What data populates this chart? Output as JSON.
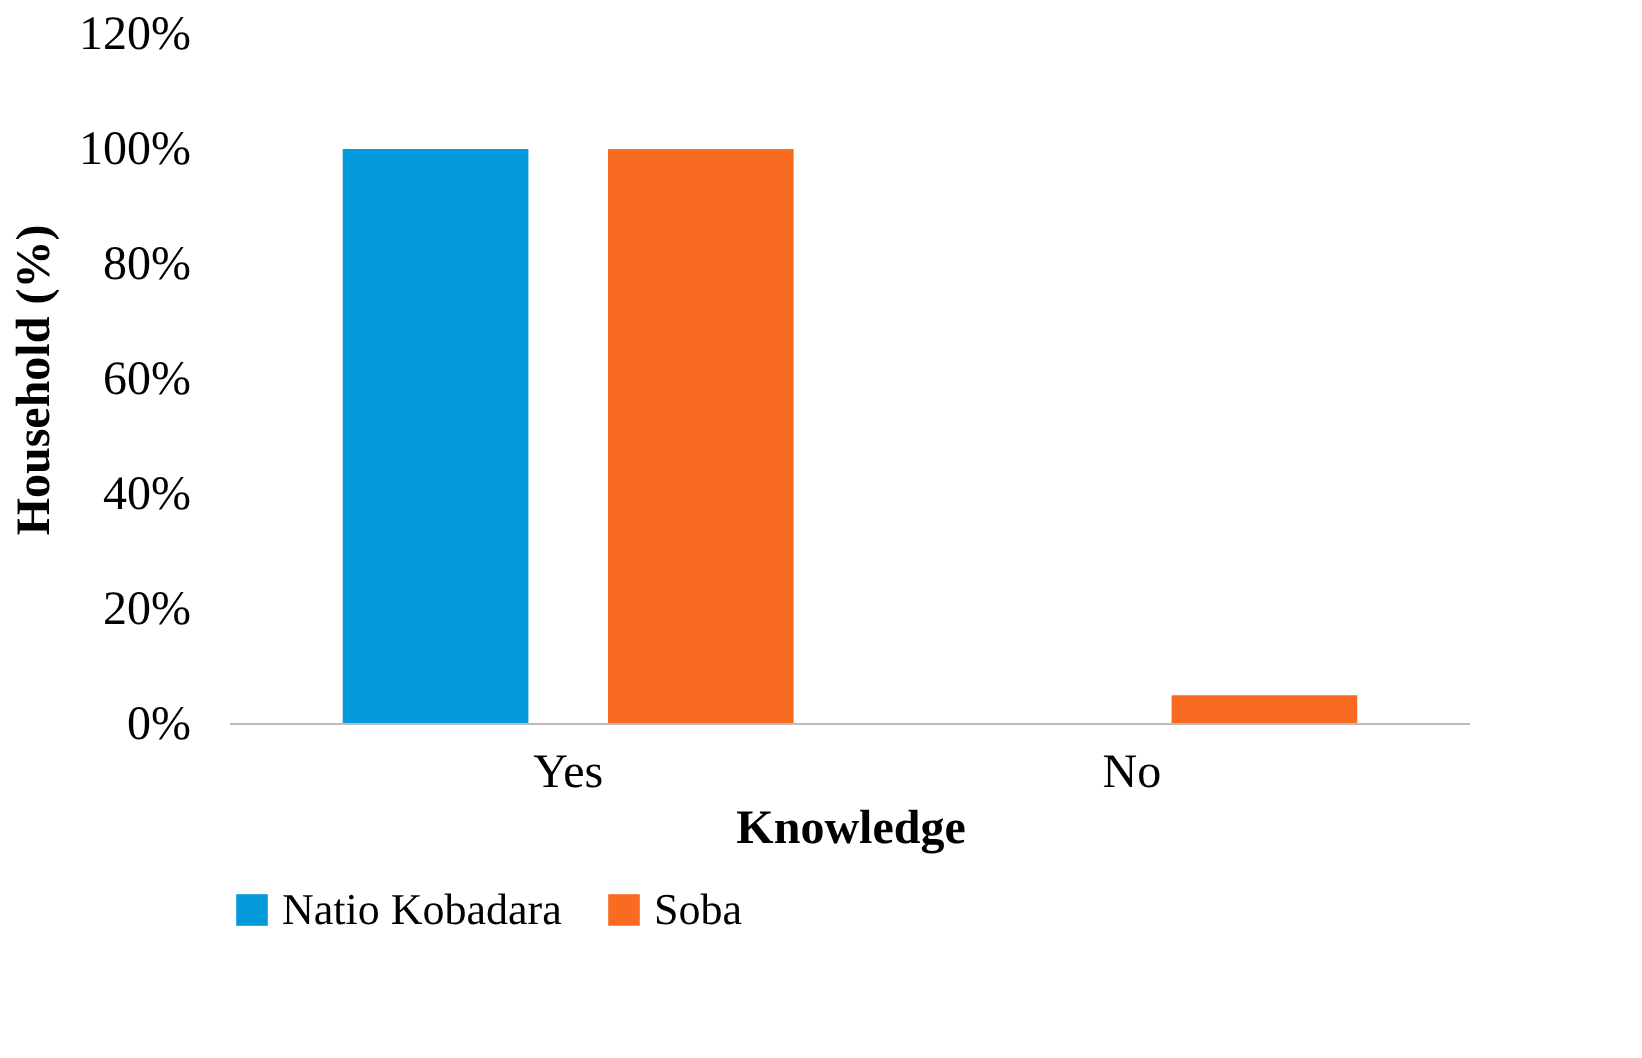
{
  "chart_data": {
    "type": "bar",
    "xlabel": "Knowledge",
    "ylabel": "Household (%)",
    "categories": [
      "Yes",
      "No"
    ],
    "series": [
      {
        "name": "Natio Kobadara",
        "color": "#039bdb",
        "values": [
          100,
          0
        ]
      },
      {
        "name": "Soba",
        "color": "#f96b21",
        "values": [
          100,
          5
        ]
      }
    ],
    "ylim": [
      0,
      120
    ],
    "yticks": [
      {
        "value": 0,
        "label": "0%"
      },
      {
        "value": 20,
        "label": "20%"
      },
      {
        "value": 40,
        "label": "40%"
      },
      {
        "value": 60,
        "label": "60%"
      },
      {
        "value": 80,
        "label": "80%"
      },
      {
        "value": 100,
        "label": "100%"
      },
      {
        "value": 120,
        "label": "120%"
      }
    ],
    "grid": false,
    "legend": "bottom"
  }
}
